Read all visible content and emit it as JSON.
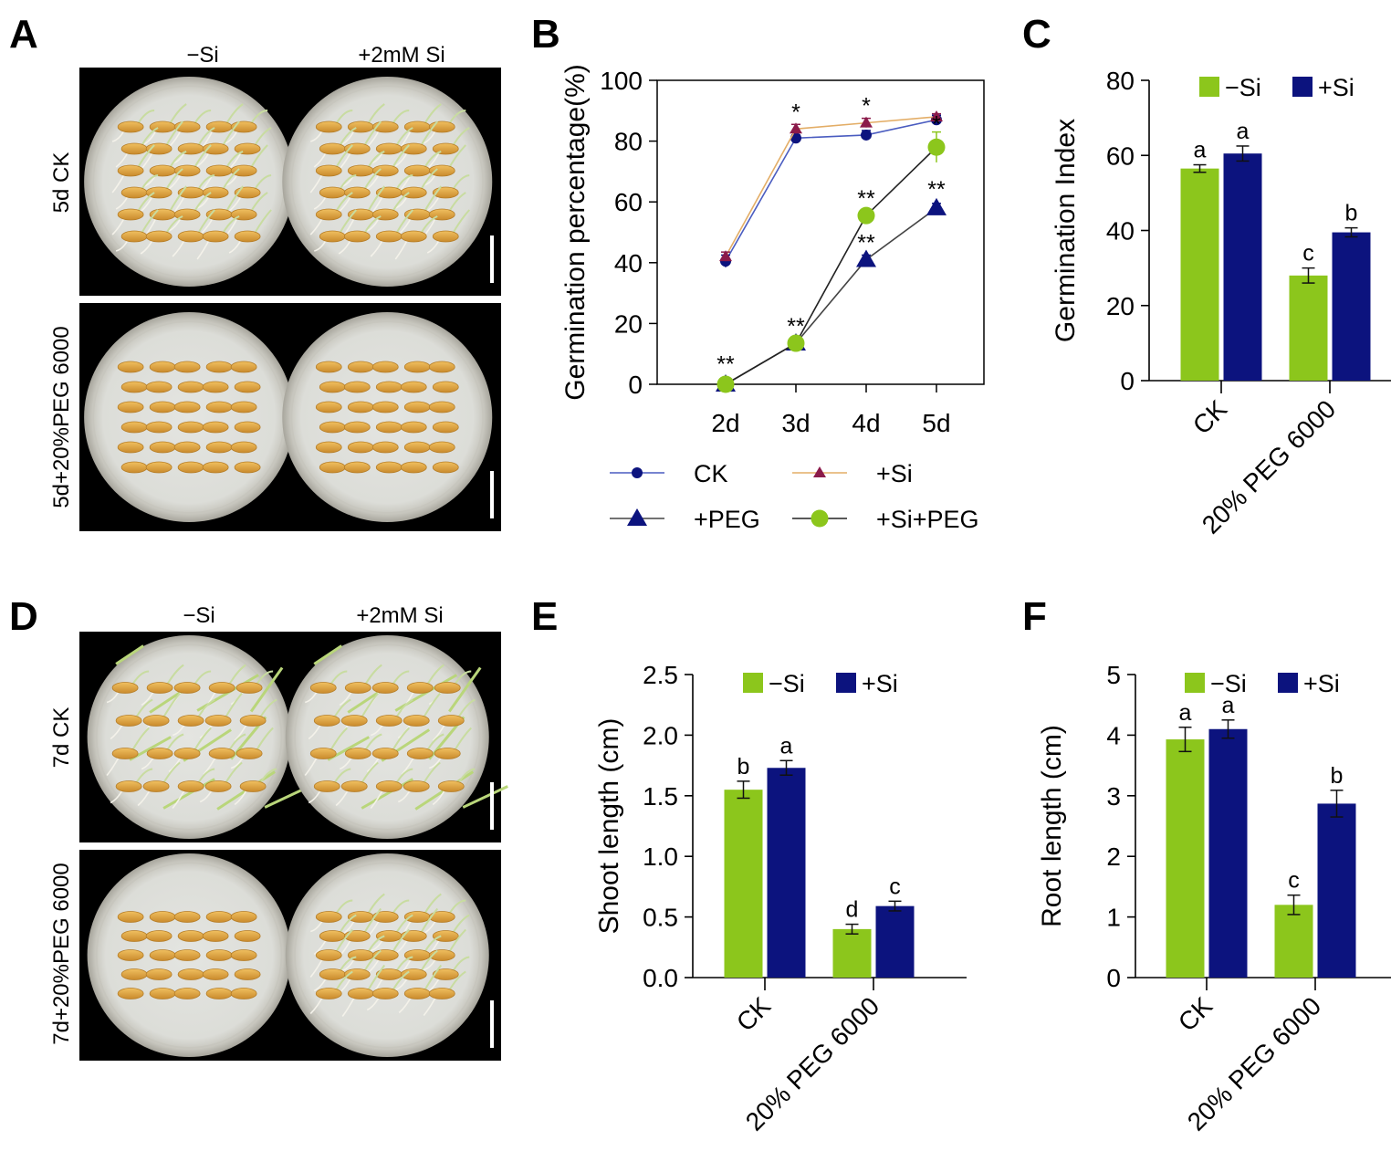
{
  "panels": {
    "A": {
      "letter": "A",
      "col_labels": [
        "−Si",
        "+2mM Si"
      ],
      "row_labels": [
        "5d CK",
        "5d+20%PEG 6000"
      ]
    },
    "D": {
      "letter": "D",
      "col_labels": [
        "−Si",
        "+2mM Si"
      ],
      "row_labels": [
        "7d CK",
        "7d+20%PEG 6000"
      ]
    }
  },
  "colors": {
    "green": "#8cc61c",
    "navy": "#0c137e",
    "ck_line": "#5567c4",
    "si_line": "#e8b56e",
    "si_marker": "#8b1a4a",
    "dish": "#e2e3de",
    "seed": "#e2a640"
  },
  "chart_data": [
    {
      "panel": "B",
      "type": "line",
      "ylabel": "Germination percentage(%)",
      "xlabel": "",
      "categories": [
        "2d",
        "3d",
        "4d",
        "5d"
      ],
      "ylim": [
        0,
        100
      ],
      "yticks": [
        "0",
        "20",
        "40",
        "60",
        "80",
        "100"
      ],
      "series": [
        {
          "name": "CK",
          "values": [
            40.5,
            81,
            82,
            87
          ],
          "err": [
            2,
            1,
            1.5,
            1.5
          ],
          "marker": "circle-small"
        },
        {
          "name": "+Si",
          "values": [
            42,
            84,
            86,
            88
          ],
          "err": [
            1.5,
            1.5,
            1.5,
            1
          ],
          "marker": "triangle-small"
        },
        {
          "name": "+PEG",
          "values": [
            0,
            13.5,
            41,
            58
          ],
          "err": [
            0.5,
            1,
            1.5,
            1.5
          ],
          "marker": "triangle-large"
        },
        {
          "name": "+Si+PEG",
          "values": [
            0,
            13.5,
            55.5,
            78
          ],
          "err": [
            0.5,
            1,
            1.5,
            5
          ],
          "marker": "circle-large"
        }
      ],
      "annotations": [
        {
          "category": "2d",
          "text": "**",
          "y": 4
        },
        {
          "category": "3d",
          "text": "*",
          "y": 87
        },
        {
          "category": "3d",
          "text": "**",
          "y": 16.5
        },
        {
          "category": "4d",
          "text": "*",
          "y": 89
        },
        {
          "category": "4d",
          "text": "**",
          "y": 58.5
        },
        {
          "category": "4d",
          "text": "**",
          "y": 44
        },
        {
          "category": "5d",
          "text": "*",
          "y": 83
        },
        {
          "category": "5d",
          "text": "**",
          "y": 61.5
        }
      ]
    },
    {
      "panel": "C",
      "type": "bar",
      "ylabel": "Germination Index",
      "xlabel": "",
      "categories": [
        "CK",
        "20% PEG 6000"
      ],
      "ylim": [
        0,
        80
      ],
      "yticks": [
        "0",
        "20",
        "40",
        "60",
        "80"
      ],
      "series": [
        {
          "name": "−Si",
          "values": [
            56.5,
            28
          ],
          "err": [
            1,
            2
          ],
          "letters": [
            "a",
            "c"
          ]
        },
        {
          "name": "+Si",
          "values": [
            60.5,
            39.5
          ],
          "err": [
            2,
            1.2
          ],
          "letters": [
            "a",
            "b"
          ]
        }
      ]
    },
    {
      "panel": "E",
      "type": "bar",
      "ylabel": "Shoot length (cm)",
      "xlabel": "",
      "categories": [
        "CK",
        "20% PEG 6000"
      ],
      "ylim": [
        0,
        2.5
      ],
      "yticks": [
        "0.0",
        "0.5",
        "1.0",
        "1.5",
        "2.0",
        "2.5"
      ],
      "series": [
        {
          "name": "−Si",
          "values": [
            1.55,
            0.4
          ],
          "err": [
            0.07,
            0.04
          ],
          "letters": [
            "b",
            "d"
          ]
        },
        {
          "name": "+Si",
          "values": [
            1.73,
            0.59
          ],
          "err": [
            0.06,
            0.04
          ],
          "letters": [
            "a",
            "c"
          ]
        }
      ]
    },
    {
      "panel": "F",
      "type": "bar",
      "ylabel": "Root length (cm)",
      "xlabel": "",
      "categories": [
        "CK",
        "20% PEG 6000"
      ],
      "ylim": [
        0,
        5
      ],
      "yticks": [
        "0",
        "1",
        "2",
        "3",
        "4",
        "5"
      ],
      "series": [
        {
          "name": "−Si",
          "values": [
            3.93,
            1.2
          ],
          "err": [
            0.2,
            0.16
          ],
          "letters": [
            "a",
            "c"
          ]
        },
        {
          "name": "+Si",
          "values": [
            4.1,
            2.87
          ],
          "err": [
            0.15,
            0.22
          ],
          "letters": [
            "a",
            "b"
          ]
        }
      ]
    }
  ]
}
